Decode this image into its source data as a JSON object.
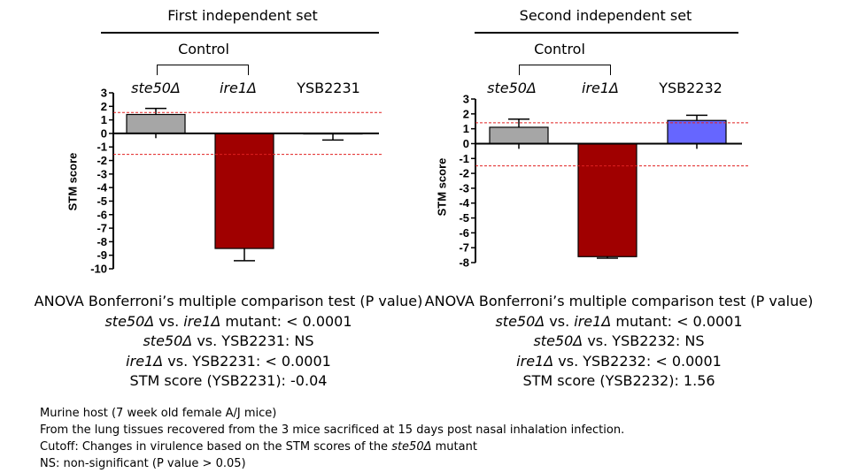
{
  "chart_data": [
    {
      "type": "bar",
      "title": "First independent set",
      "bracket_label": "Control",
      "ylabel": "STM score",
      "ylim": [
        -10,
        3
      ],
      "yticks": [
        "3",
        "2",
        "1",
        "0",
        "-1",
        "-2",
        "-3",
        "-4",
        "-5",
        "-6",
        "-7",
        "-8",
        "-9",
        "-10"
      ],
      "categories": [
        "ste50Δ",
        "ire1Δ",
        "YSB2231"
      ],
      "values": [
        1.4,
        -8.5,
        -0.04
      ],
      "errors": [
        0.45,
        0.9,
        0.45
      ],
      "bar_colors": [
        "#a6a6a6",
        "#a00000",
        "#ffffff"
      ],
      "cutoffs": [
        1.55,
        -1.55
      ],
      "cutoff_color": "#e02020",
      "stats": {
        "heading": "ANOVA Bonferroni’s multiple comparison test (P value)",
        "lines": [
          {
            "a": "ste50Δ",
            "mid": " vs. ",
            "b": "ire1Δ",
            "rest": " mutant: < 0.0001"
          },
          {
            "a": "ste50Δ",
            "mid": " vs. YSB2231: NS",
            "b": "",
            "rest": ""
          },
          {
            "a": "ire1Δ",
            "mid": " vs. YSB2231: < 0.0001",
            "b": "",
            "rest": ""
          }
        ],
        "score": "STM score (YSB2231): -0.04"
      }
    },
    {
      "type": "bar",
      "title": "Second independent set",
      "bracket_label": "Control",
      "ylabel": "STM score",
      "ylim": [
        -8,
        3
      ],
      "yticks": [
        "3",
        "2",
        "1",
        "0",
        "-1",
        "-2",
        "-3",
        "-4",
        "-5",
        "-6",
        "-7",
        "-8"
      ],
      "categories": [
        "ste50Δ",
        "ire1Δ",
        "YSB2232"
      ],
      "values": [
        1.1,
        -7.6,
        1.56
      ],
      "errors": [
        0.55,
        0.1,
        0.35
      ],
      "bar_colors": [
        "#a6a6a6",
        "#a00000",
        "#6666ff"
      ],
      "cutoffs": [
        1.4,
        -1.5
      ],
      "cutoff_color": "#e02020",
      "stats": {
        "heading": "ANOVA Bonferroni’s multiple comparison test (P value)",
        "lines": [
          {
            "a": "ste50Δ",
            "mid": " vs. ",
            "b": "ire1Δ",
            "rest": " mutant: < 0.0001"
          },
          {
            "a": "ste50Δ",
            "mid": " vs. YSB2232: NS",
            "b": "",
            "rest": ""
          },
          {
            "a": "ire1Δ",
            "mid": " vs. YSB2232: < 0.0001",
            "b": "",
            "rest": ""
          }
        ],
        "score": "STM score (YSB2232): 1.56"
      }
    }
  ],
  "notes": {
    "line1": "Murine host (7 week old female A/J mice)",
    "line2": "From  the lung tissues recovered from the 3 mice sacrificed at 15 days post nasal inhalation infection.",
    "line3_pre": "Cutoff: Changes in virulence based on the STM scores of the ",
    "line3_it": "ste50Δ",
    "line3_post": " mutant",
    "line4": "NS: non-significant (P value > 0.05)"
  }
}
